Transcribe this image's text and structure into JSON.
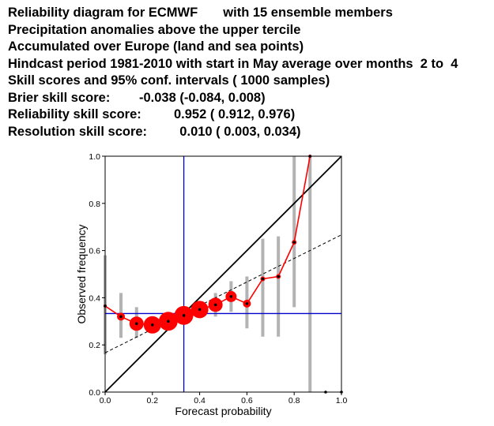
{
  "header": {
    "lines": [
      "Reliability diagram for ECMWF       with 15 ensemble members",
      "Precipitation anomalies above the upper tercile",
      "Accumulated over Europe (land and sea points)",
      "Hindcast period 1981-2010 with start in May average over months  2 to  4",
      "Skill scores and 95% conf. intervals ( 1000 samples)",
      "Brier skill score:        -0.038 (-0.084, 0.008)",
      "Reliability skill score:         0.952 ( 0.912, 0.976)",
      "Resolution skill score:         0.010 ( 0.003, 0.034)"
    ]
  },
  "chart_data": {
    "type": "scatter",
    "xlabel": "Forecast probability",
    "ylabel": "Observed frequency",
    "xlim": [
      0,
      1
    ],
    "ylim": [
      0,
      1
    ],
    "xticks": [
      "0.0",
      "0.2",
      "0.4",
      "0.6",
      "0.8",
      "1.0"
    ],
    "yticks": [
      "0.0",
      "0.2",
      "0.4",
      "0.6",
      "0.8",
      "1.0"
    ],
    "climatology": 0.333,
    "diagonal": [
      [
        0,
        0
      ],
      [
        1,
        1
      ]
    ],
    "no_skill_line": [
      [
        0,
        0.1667
      ],
      [
        1,
        0.6667
      ]
    ],
    "colors": {
      "curve": "#ff0000",
      "marker": "#ff0000",
      "center_dot": "#000000",
      "ci_bar": "#b3b3b3",
      "climatology_lines": "#0000cc",
      "diagonal": "#000000",
      "no_skill": "#000000"
    },
    "series": [
      {
        "x": [
          0.0,
          0.067,
          0.133,
          0.2,
          0.267,
          0.333,
          0.4,
          0.467,
          0.533,
          0.6,
          0.667,
          0.733,
          0.8,
          0.867,
          0.933,
          1.0
        ],
        "y": [
          0.365,
          0.32,
          0.29,
          0.285,
          0.3,
          0.325,
          0.35,
          0.37,
          0.405,
          0.375,
          0.48,
          0.49,
          0.635,
          1.0,
          0.0,
          0.0
        ],
        "ci_low": [
          0.16,
          0.23,
          0.23,
          0.25,
          0.27,
          0.29,
          0.32,
          0.32,
          0.34,
          0.27,
          0.235,
          0.235,
          0.36,
          0.0,
          null,
          null
        ],
        "ci_high": [
          0.58,
          0.42,
          0.36,
          0.32,
          0.33,
          0.36,
          0.38,
          0.42,
          0.47,
          0.49,
          0.65,
          0.66,
          1.0,
          1.0,
          null,
          null
        ],
        "marker_size": [
          2,
          5,
          9,
          11,
          12,
          12,
          11,
          9,
          7,
          5,
          3,
          3,
          3,
          2,
          2,
          2
        ]
      }
    ]
  }
}
